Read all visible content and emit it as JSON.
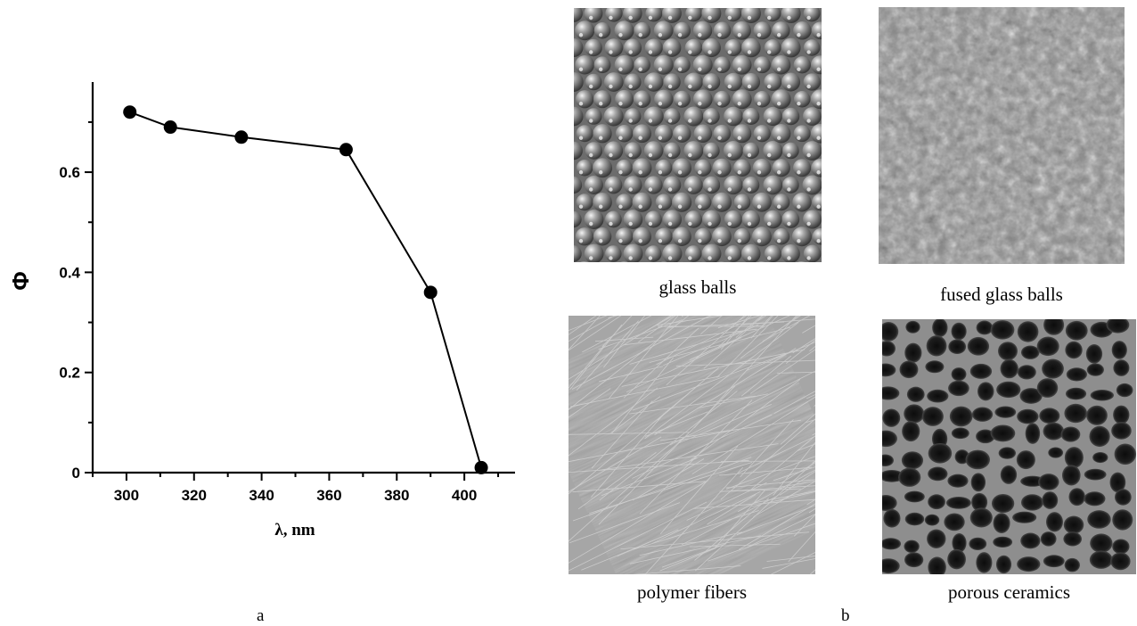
{
  "chart_data": {
    "type": "line",
    "x": [
      301,
      313,
      334,
      365,
      390,
      405
    ],
    "y": [
      0.72,
      0.69,
      0.67,
      0.645,
      0.36,
      0.01
    ],
    "xlabel": "λ, nm",
    "ylabel": "Φ",
    "xlim": [
      290,
      415
    ],
    "ylim": [
      0,
      0.78
    ],
    "xticks": [
      300,
      320,
      340,
      360,
      380,
      400
    ],
    "yticks": [
      0,
      0.2,
      0.4,
      0.6
    ],
    "xtick_labels": [
      "300",
      "320",
      "340",
      "360",
      "380",
      "400"
    ],
    "ytick_labels": [
      "0",
      "0.2",
      "0.4",
      "0.6"
    ],
    "grid": false
  },
  "panels": {
    "a_label": "a",
    "b_label": "b"
  },
  "photos": [
    {
      "caption": "glass balls",
      "icon": "glass-balls-photo"
    },
    {
      "caption": "fused glass balls",
      "icon": "fused-glass-balls-photo"
    },
    {
      "caption": "polymer fibers",
      "icon": "polymer-fibers-photo"
    },
    {
      "caption": "porous ceramics",
      "icon": "porous-ceramics-photo"
    }
  ]
}
